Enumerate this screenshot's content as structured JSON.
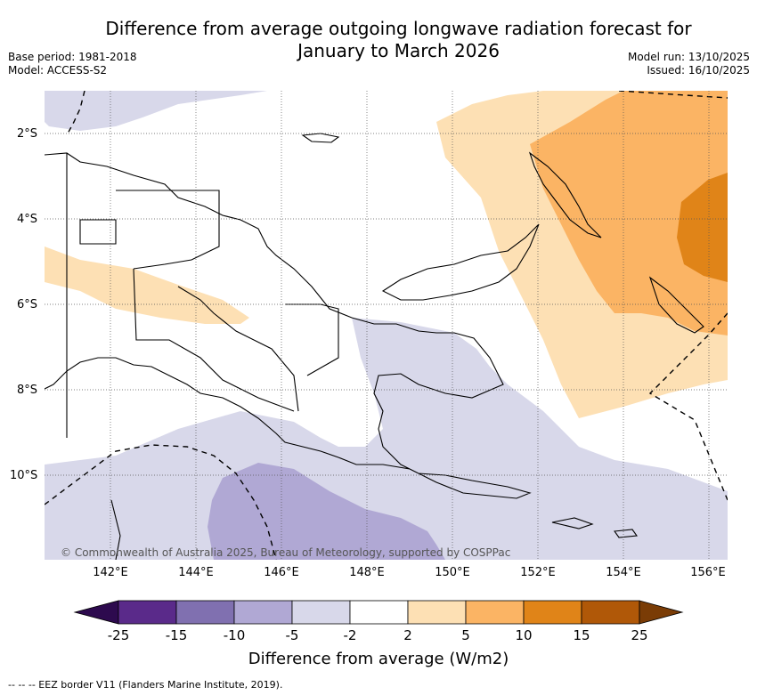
{
  "title": "Difference from average outgoing longwave radiation forecast for January to March 2026",
  "base_period": "Base period: 1981-2018",
  "model": "Model: ACCESS-S2",
  "model_run": "Model run: 13/10/2025",
  "issued": "Issued: 16/10/2025",
  "copyright": "© Commonwealth of Australia 2025, Bureau of Meteorology, supported by COSPPac",
  "lat_labels": [
    "2°S",
    "4°S",
    "6°S",
    "8°S",
    "10°S"
  ],
  "lon_labels": [
    "142°E",
    "144°E",
    "146°E",
    "148°E",
    "150°E",
    "152°E",
    "154°E",
    "156°E"
  ],
  "colorbar": {
    "title": "Difference from average (W/m2)",
    "labels": [
      "-25",
      "-15",
      "-10",
      "-5",
      "-2",
      "2",
      "5",
      "10",
      "15",
      "25"
    ],
    "colors": [
      "#2d0a4e",
      "#5a2a8a",
      "#8070b0",
      "#b0a8d4",
      "#d8d8ea",
      "#ffffff",
      "#fde0b4",
      "#fbb464",
      "#e08418",
      "#b05808",
      "#7a3c06"
    ]
  },
  "legend_note": "--  --  -- EEZ border V11 (Flanders Marine Institute, 2019)."
}
